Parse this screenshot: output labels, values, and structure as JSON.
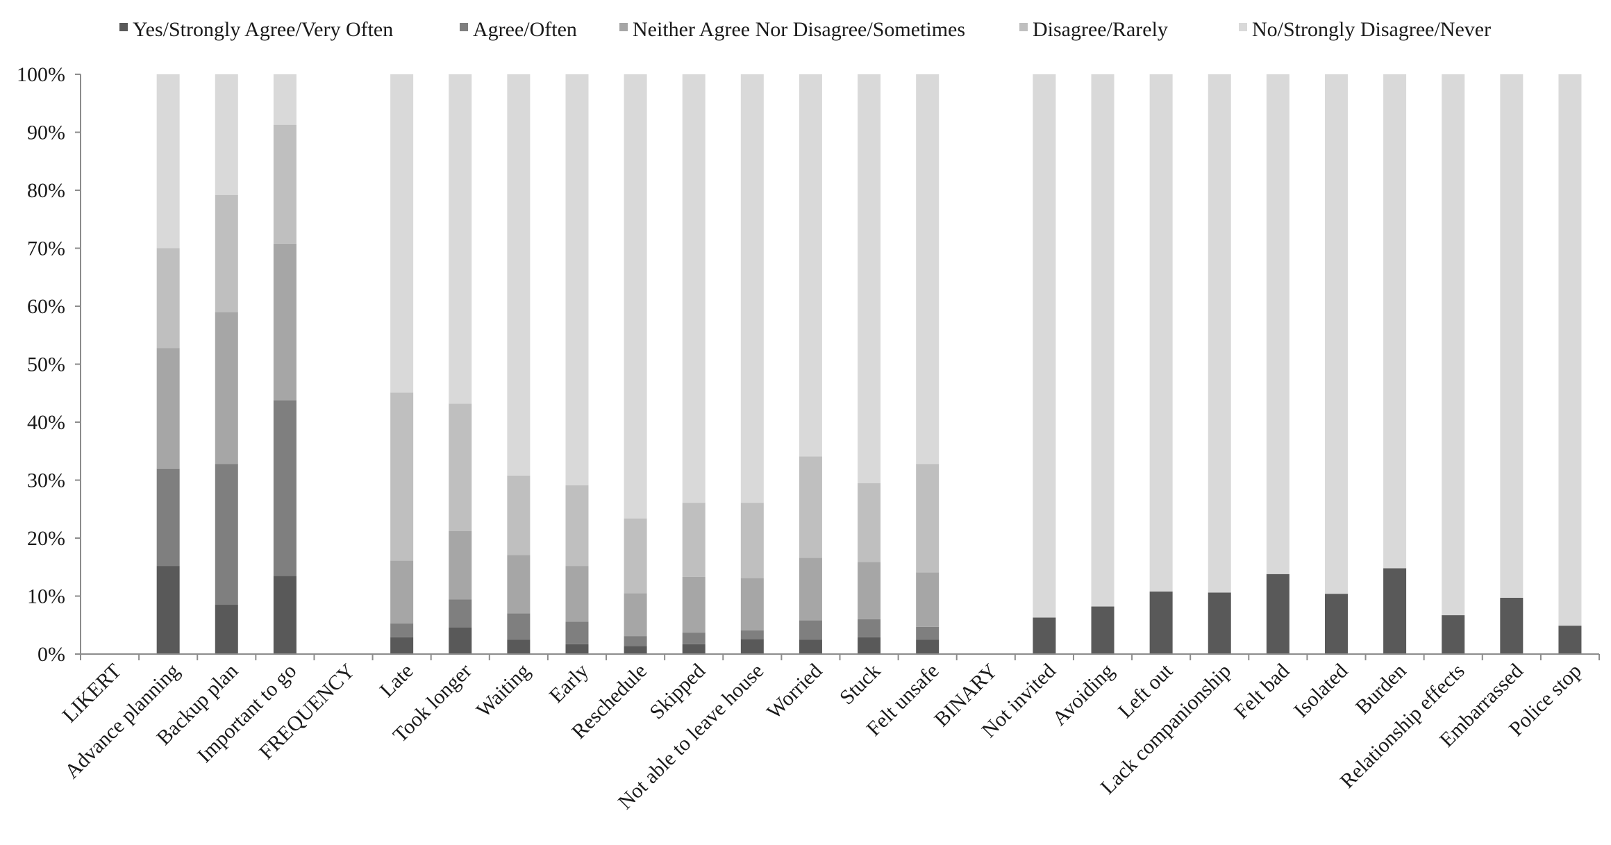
{
  "chart_data": {
    "type": "bar",
    "stacked": true,
    "title": "",
    "xlabel": "",
    "ylabel": "",
    "ylim": [
      0,
      100
    ],
    "y_ticks": [
      "0%",
      "10%",
      "20%",
      "30%",
      "40%",
      "50%",
      "60%",
      "70%",
      "80%",
      "90%",
      "100%"
    ],
    "legend_position": "top",
    "grid": false,
    "categories": [
      "LIKERT",
      "Advance planning",
      "Backup plan",
      "Important to go",
      "FREQUENCY",
      "Late",
      "Took longer",
      "Waiting",
      "Early",
      "Reschedule",
      "Skipped",
      "Not able to leave house",
      "Worried",
      "Stuck",
      "Felt unsafe",
      "BINARY",
      "Not invited",
      "Avoiding",
      "Left out",
      "Lack companionship",
      "Felt bad",
      "Isolated",
      "Burden",
      "Relationship effects",
      "Embarrassed",
      "Police stop"
    ],
    "series": [
      {
        "name": "Yes/Strongly Agree/Very Often",
        "color": "#595959",
        "values": [
          0,
          15.2,
          8.5,
          13.5,
          0,
          2.9,
          4.6,
          2.5,
          1.7,
          1.4,
          1.7,
          2.6,
          2.5,
          2.9,
          2.5,
          0,
          6.3,
          8.2,
          10.8,
          10.6,
          13.8,
          10.4,
          14.8,
          6.7,
          9.7,
          4.9
        ]
      },
      {
        "name": "Agree/Often",
        "color": "#7f7f7f",
        "values": [
          0,
          16.8,
          24.3,
          30.3,
          0,
          2.4,
          4.8,
          4.5,
          3.9,
          1.7,
          2.0,
          1.5,
          3.3,
          3.1,
          2.2,
          0,
          0,
          0,
          0,
          0,
          0,
          0,
          0,
          0,
          0,
          0
        ]
      },
      {
        "name": "Neither Agree Nor Disagree/Sometimes",
        "color": "#a6a6a6",
        "values": [
          0,
          20.8,
          26.2,
          27.0,
          0,
          10.8,
          11.8,
          10.1,
          9.6,
          7.4,
          9.6,
          9.0,
          10.8,
          9.9,
          9.4,
          0,
          0,
          0,
          0,
          0,
          0,
          0,
          0,
          0,
          0,
          0
        ]
      },
      {
        "name": "Disagree/Rarely",
        "color": "#bfbfbf",
        "values": [
          0,
          17.2,
          20.2,
          20.5,
          0,
          29.0,
          22.0,
          13.7,
          13.9,
          12.9,
          12.8,
          13.0,
          17.5,
          13.6,
          18.7,
          0,
          0,
          0,
          0,
          0,
          0,
          0,
          0,
          0,
          0,
          0
        ]
      },
      {
        "name": "No/Strongly Disagree/Never",
        "color": "#d9d9d9",
        "values": [
          0,
          30.0,
          20.8,
          8.7,
          0,
          54.9,
          56.8,
          69.2,
          70.9,
          76.6,
          73.9,
          73.9,
          65.9,
          70.5,
          67.2,
          0,
          93.7,
          91.8,
          89.2,
          89.4,
          86.2,
          89.6,
          85.2,
          93.3,
          90.3,
          95.1
        ]
      }
    ]
  }
}
